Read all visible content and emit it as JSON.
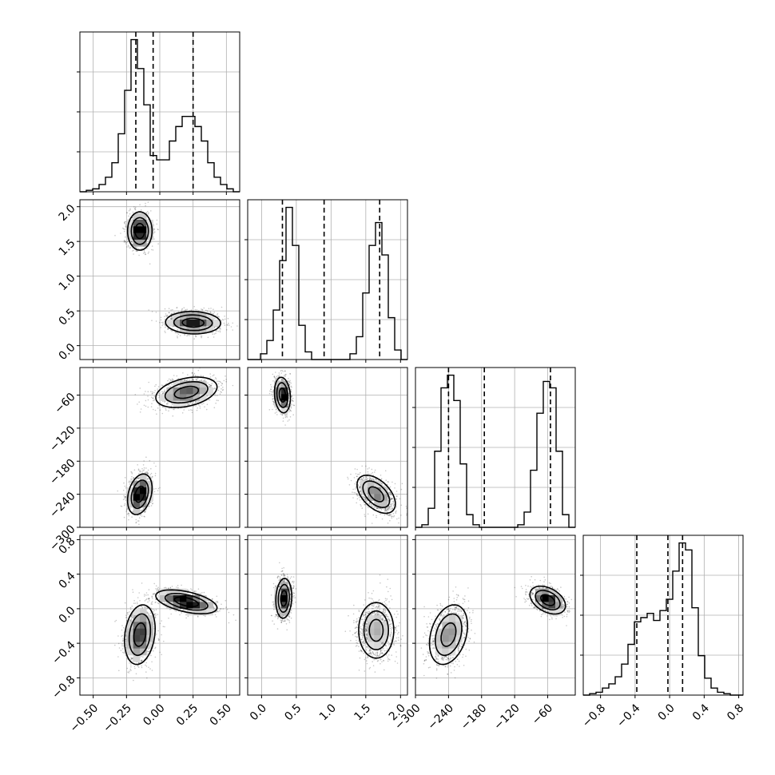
{
  "chart_data": {
    "type": "corner",
    "params": [
      {
        "range": [
          -0.6,
          0.6
        ],
        "ticks": [
          -0.5,
          -0.25,
          0.0,
          0.25,
          0.5
        ],
        "tick_labels": [
          "−0.50",
          "−0.25",
          "0.00",
          "0.25",
          "0.50"
        ]
      },
      {
        "range": [
          -0.2,
          2.1
        ],
        "ticks": [
          0.0,
          0.5,
          1.0,
          1.5,
          2.0
        ],
        "tick_labels": [
          "0.0",
          "0.5",
          "1.0",
          "1.5",
          "2.0"
        ]
      },
      {
        "range": [
          -300,
          -10
        ],
        "ticks": [
          -300,
          -240,
          -180,
          -120,
          -60
        ],
        "tick_labels": [
          "−300",
          "−240",
          "−180",
          "−120",
          "−60"
        ]
      },
      {
        "range": [
          -1.0,
          0.85
        ],
        "ticks": [
          -0.8,
          -0.4,
          0.0,
          0.4,
          0.8
        ],
        "tick_labels": [
          "−0.8",
          "−0.4",
          "0.0",
          "0.4",
          "0.8"
        ]
      }
    ],
    "histograms": [
      {
        "bins": [
          -0.6,
          0.6
        ],
        "counts": [
          0,
          1,
          2,
          5,
          10,
          20,
          40,
          70,
          105,
          85,
          60,
          25,
          22,
          22,
          35,
          45,
          52,
          52,
          45,
          35,
          20,
          10,
          5,
          2,
          0
        ],
        "quantiles": [
          -0.18,
          -0.05,
          0.25
        ]
      },
      {
        "bins": [
          -0.2,
          2.1
        ],
        "counts": [
          0,
          0,
          3,
          10,
          26,
          52,
          80,
          60,
          18,
          4,
          0,
          0,
          0,
          0,
          0,
          0,
          3,
          12,
          35,
          60,
          72,
          55,
          22,
          5,
          0
        ],
        "quantiles": [
          0.3,
          0.9,
          1.7
        ]
      },
      {
        "bins": [
          -300,
          -10
        ],
        "counts": [
          0,
          2,
          15,
          60,
          110,
          120,
          100,
          50,
          10,
          2,
          0,
          0,
          0,
          0,
          0,
          0,
          2,
          12,
          45,
          90,
          115,
          110,
          60,
          10,
          0
        ],
        "quantiles": [
          -240,
          -175,
          -55
        ]
      },
      {
        "bins": [
          -1.0,
          0.85
        ],
        "counts": [
          0,
          1,
          2,
          5,
          8,
          13,
          22,
          36,
          52,
          55,
          58,
          53,
          60,
          68,
          88,
          108,
          103,
          62,
          28,
          12,
          5,
          2,
          1,
          0,
          0
        ],
        "quantiles": [
          -0.38,
          -0.02,
          0.15
        ]
      }
    ],
    "modes": [
      [
        {
          "mean": [
            -0.15,
            1.65
          ],
          "sd": [
            0.04,
            0.12
          ],
          "rho": 0.0,
          "weight": 0.5
        },
        {
          "mean": [
            0.25,
            0.33
          ],
          "sd": [
            0.09,
            0.07
          ],
          "rho": -0.05,
          "weight": 0.5
        }
      ],
      [
        {
          "mean": [
            0.2,
            -55
          ],
          "sd": [
            0.1,
            12
          ],
          "rho": 0.35,
          "weight": 0.5
        },
        {
          "mean": [
            -0.15,
            -240
          ],
          "sd": [
            0.04,
            16
          ],
          "rho": 0.3,
          "weight": 0.5
        }
      ],
      [
        {
          "mean": [
            0.3,
            -60
          ],
          "sd": [
            0.05,
            14
          ],
          "rho": -0.15,
          "weight": 0.5
        },
        {
          "mean": [
            1.65,
            -240
          ],
          "sd": [
            0.12,
            15
          ],
          "rho": -0.5,
          "weight": 0.5
        }
      ],
      [
        {
          "mean": [
            -0.15,
            -0.3
          ],
          "sd": [
            0.05,
            0.15
          ],
          "rho": 0.2,
          "weight": 0.5
        },
        {
          "mean": [
            0.2,
            0.08
          ],
          "sd": [
            0.1,
            0.06
          ],
          "rho": -0.5,
          "weight": 0.5
        }
      ],
      [
        {
          "mean": [
            0.32,
            0.12
          ],
          "sd": [
            0.05,
            0.1
          ],
          "rho": 0.1,
          "weight": 0.5
        },
        {
          "mean": [
            1.65,
            -0.25
          ],
          "sd": [
            0.11,
            0.14
          ],
          "rho": 0.0,
          "weight": 0.5
        }
      ],
      [
        {
          "mean": [
            -240,
            -0.3
          ],
          "sd": [
            15,
            0.15
          ],
          "rho": 0.3,
          "weight": 0.5
        },
        {
          "mean": [
            -60,
            0.1
          ],
          "sd": [
            14,
            0.07
          ],
          "rho": -0.4,
          "weight": 0.5
        }
      ]
    ],
    "grid": true
  }
}
